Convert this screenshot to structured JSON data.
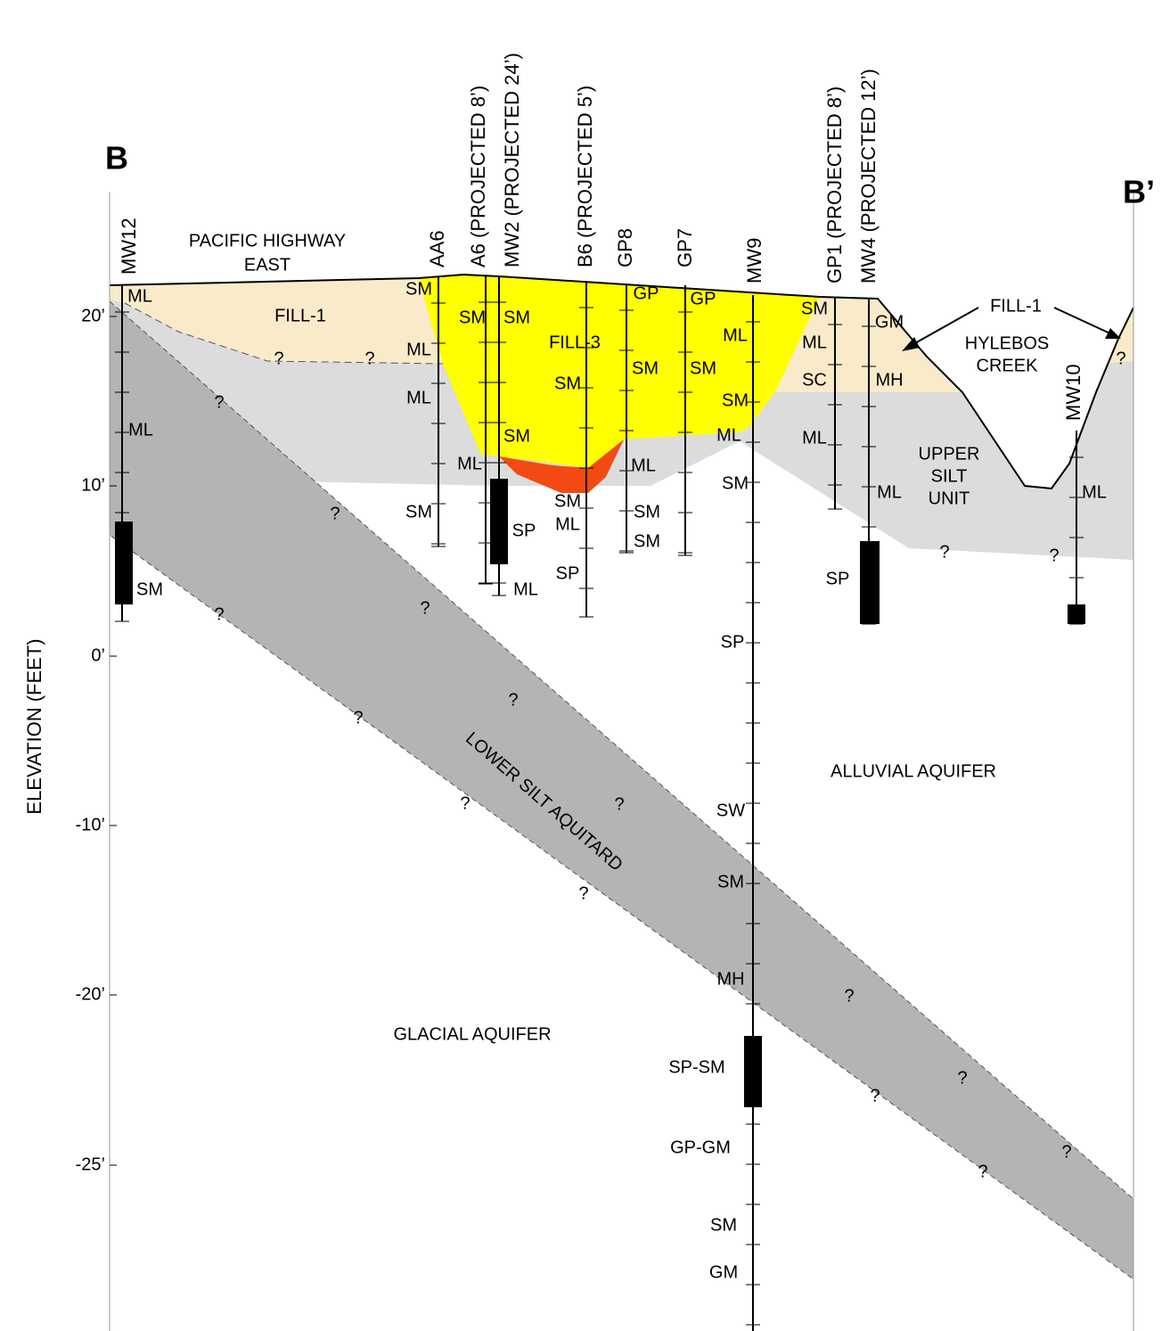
{
  "section": {
    "start": "B",
    "end": "B’"
  },
  "axis_title": "ELEVATION  (FEET)",
  "elevation_labels": [
    "20’",
    "10’",
    "0’",
    "-10’",
    "-20’",
    "-25’"
  ],
  "borings": [
    "MW12",
    "AA6",
    "A6  (PROJECTED  8’)",
    "MW2  (PROJECTED  24’)",
    "B6  (PROJECTED  5’)",
    "GP8",
    "GP7",
    "MW9",
    "GP1  (PROJECTED  8’)",
    "MW4  (PROJECTED  12’)",
    "MW10"
  ],
  "unit_labels": [
    [
      "PACIFIC  HIGHWAY",
      "EAST"
    ],
    [
      "FILL-1"
    ],
    [
      "FILL-3"
    ],
    [
      "FILL-1"
    ],
    [
      "HYLEBOS",
      "CREEK"
    ],
    [
      "UPPER",
      "SILT",
      "UNIT"
    ],
    [
      "LOWER  SILT  AQUITARD"
    ],
    [
      "ALLUVIAL  AQUIFER"
    ],
    [
      "GLACIAL  AQUIFER"
    ]
  ],
  "soil_labels": [
    "ML",
    "ML",
    "SM",
    "SM",
    "ML",
    "ML",
    "SM",
    "SM",
    "ML",
    "SM",
    "SM",
    "SP",
    "ML",
    "SM",
    "SM",
    "ML",
    "SP",
    "GP",
    "SM",
    "ML",
    "SM",
    "SM",
    "GP",
    "SM",
    "ML",
    "SM",
    "ML",
    "SM",
    "SP",
    "SW",
    "SM",
    "MH",
    "SP-SM",
    "GP-GM",
    "SM",
    "GM",
    "SM",
    "ML",
    "SC",
    "ML",
    "GM",
    "MH",
    "ML",
    "SP",
    "ML"
  ],
  "question_marks": [
    "?",
    "?",
    "?",
    "?",
    "?",
    "?",
    "?",
    "?",
    "?",
    "?",
    "?",
    "?",
    "?",
    "?",
    "?",
    "?",
    "?",
    "?",
    "?"
  ]
}
